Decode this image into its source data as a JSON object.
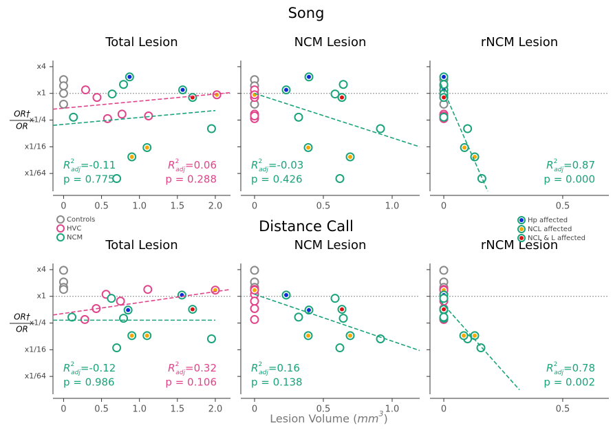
{
  "figure": {
    "rows": [
      "Song",
      "Distance Call"
    ],
    "ylabel": {
      "numerator": "OR†",
      "denominator": "OR"
    },
    "xlabel": {
      "text": "Lesion Volume (",
      "var": "mm",
      "sup": "3",
      "close": ")"
    },
    "r2_symbol": {
      "base": "R",
      "sup": "2",
      "sub": "adj"
    },
    "markers": [
      {
        "name": "Hp affected",
        "color": "#0a2ad6"
      },
      {
        "name": "NCL affected",
        "color": "#f5a800"
      },
      {
        "name": "NCL & L affected",
        "color": "#e01010"
      }
    ]
  },
  "chart_data": [
    {
      "type": "scatter",
      "title": "Total Lesion",
      "log_y": true,
      "hline": 1,
      "xlim": [
        -0.14,
        2.2
      ],
      "xticks": [
        0,
        0.5,
        {
          "value": 1,
          "label": "1.0"
        },
        1.5,
        {
          "value": 2,
          "label": "2.0"
        }
      ],
      "ylim": [
        0.0062,
        5.5
      ],
      "yticks": [
        {
          "value": 4,
          "label": "x4"
        },
        {
          "value": 1,
          "label": "x1"
        },
        {
          "value": 0.25,
          "label": "x1/4"
        },
        {
          "value": 0.0625,
          "label": "x1/16"
        },
        {
          "value": 0.015625,
          "label": "x1/64"
        }
      ],
      "series": [
        {
          "name": "Controls",
          "color": "#888888",
          "x": [
            0,
            0,
            0,
            0
          ],
          "values": [
            2.04,
            1.48,
            1,
            0.57
          ]
        },
        {
          "name": "HVC",
          "color": "#e0438a",
          "x": [
            0.29,
            0.44,
            0.58,
            0.77,
            1.12,
            2.02
          ],
          "values": [
            1.2,
            0.81,
            0.27,
            0.34,
            0.31,
            0.93
          ],
          "inner": [
            null,
            null,
            null,
            null,
            null,
            "#f5a800"
          ]
        },
        {
          "name": "NCM",
          "color": "#1aa37a",
          "x": [
            0.87,
            1.57,
            0.64,
            0.79,
            1.7,
            0.13,
            1.95,
            1.1,
            0.9,
            0.7
          ],
          "values": [
            2.35,
            1.2,
            0.97,
            1.59,
            0.81,
            0.29,
            0.16,
            0.06,
            0.037,
            0.012
          ],
          "inner": [
            "#0a2ad6",
            "#0a2ad6",
            null,
            null,
            "#e01010",
            null,
            null,
            "#f5a800",
            "#f5a800",
            null
          ]
        }
      ],
      "fits": [
        {
          "color": "#e0438a",
          "x": [
            -0.14,
            2.2
          ],
          "values": [
            0.44,
            1.04
          ]
        },
        {
          "color": "#1aa37a",
          "x": [
            -0.14,
            2.0
          ],
          "values": [
            0.19,
            0.41
          ]
        }
      ],
      "stats": [
        {
          "color": "#1aa37a",
          "corner": "left",
          "r2": "=-0.11",
          "p": "p = 0.775"
        },
        {
          "color": "#e0438a",
          "corner": "right",
          "r2": "=0.06",
          "p": "p = 0.288"
        }
      ]
    },
    {
      "type": "scatter",
      "title": "NCM Lesion",
      "log_y": true,
      "hline": 1,
      "xlim": [
        -0.1,
        1.2
      ],
      "xticks": [
        {
          "value": 0,
          "label": "0"
        },
        0.5,
        {
          "value": 1,
          "label": "1.0"
        }
      ],
      "ylim": [
        0.0062,
        5.5
      ],
      "yticks": [
        4,
        1,
        0.25,
        0.0625,
        0.015625
      ],
      "series": [
        {
          "color": "#888888",
          "x": [
            0,
            0,
            0,
            0
          ],
          "values": [
            2.04,
            1.48,
            1,
            0.57
          ]
        },
        {
          "color": "#e0438a",
          "x": [
            0,
            0,
            0,
            0,
            0,
            0
          ],
          "values": [
            1.2,
            0.81,
            0.27,
            0.34,
            0.31,
            0.93
          ],
          "inner": [
            null,
            null,
            null,
            null,
            null,
            "#f5a800"
          ]
        },
        {
          "color": "#1aa37a",
          "x": [
            0.395,
            0.23,
            0.585,
            0.645,
            0.635,
            0.32,
            0.915,
            0.39,
            0.695,
            0.62
          ],
          "values": [
            2.35,
            1.2,
            0.97,
            1.59,
            0.81,
            0.29,
            0.16,
            0.06,
            0.037,
            0.012
          ],
          "inner": [
            "#0a2ad6",
            "#0a2ad6",
            null,
            null,
            "#e01010",
            null,
            null,
            "#f5a800",
            "#f5a800",
            null
          ]
        }
      ],
      "fits": [
        {
          "color": "#1aa37a",
          "x": [
            0,
            1.2
          ],
          "values": [
            1,
            0.0625
          ]
        }
      ],
      "stats": [
        {
          "color": "#1aa37a",
          "corner": "left",
          "r2": "=-0.03",
          "p": "p = 0.426"
        }
      ]
    },
    {
      "type": "scatter",
      "title": "rNCM Lesion",
      "log_y": true,
      "hline": 1,
      "xlim": [
        -0.058,
        0.694
      ],
      "xticks": [
        0,
        0.5
      ],
      "ylim": [
        0.0062,
        5.5
      ],
      "yticks": [
        4,
        1,
        0.25,
        0.0625,
        0.015625
      ],
      "series": [
        {
          "color": "#888888",
          "x": [
            0,
            0,
            0,
            0
          ],
          "values": [
            2.04,
            1.48,
            1,
            0.57
          ]
        },
        {
          "color": "#e0438a",
          "x": [
            0,
            0,
            0,
            0,
            0,
            0
          ],
          "values": [
            1.2,
            0.81,
            0.27,
            0.34,
            0.31,
            0.93
          ],
          "inner": [
            null,
            null,
            null,
            null,
            null,
            "#f5a800"
          ]
        },
        {
          "color": "#1aa37a",
          "x": [
            0,
            0,
            0,
            0,
            0,
            0,
            0.1,
            0.087,
            0.13,
            0.16
          ],
          "values": [
            2.35,
            1.2,
            0.97,
            1.59,
            0.81,
            0.29,
            0.16,
            0.06,
            0.037,
            0.012
          ],
          "inner": [
            "#0a2ad6",
            "#0a2ad6",
            null,
            null,
            "#e01010",
            null,
            null,
            "#f5a800",
            "#f5a800",
            null
          ]
        }
      ],
      "fits": [
        {
          "color": "#1aa37a",
          "x": [
            -0.014,
            0.185
          ],
          "values": [
            1.7,
            0.0062
          ]
        }
      ],
      "stats": [
        {
          "color": "#1aa37a",
          "corner": "right",
          "r2": "=0.87",
          "p": "p = 0.000"
        }
      ]
    },
    {
      "type": "scatter",
      "title": "Total Lesion",
      "log_y": true,
      "hline": 1,
      "xlim": [
        -0.14,
        2.2
      ],
      "xticks": [
        0,
        0.5,
        {
          "value": 1,
          "label": "1.0"
        },
        1.5,
        {
          "value": 2,
          "label": "2.0"
        }
      ],
      "ylim": [
        0.0062,
        5.5
      ],
      "yticks": [
        {
          "value": 4,
          "label": "x4"
        },
        {
          "value": 1,
          "label": "x1"
        },
        {
          "value": 0.25,
          "label": "x1/4"
        },
        {
          "value": 0.0625,
          "label": "x1/16"
        },
        {
          "value": 0.015625,
          "label": "x1/64"
        }
      ],
      "series": [
        {
          "color": "#888888",
          "x": [
            0,
            0,
            0,
            0
          ],
          "values": [
            3.86,
            2.11,
            1.59,
            1.43
          ]
        },
        {
          "color": "#e0438a",
          "x": [
            0.28,
            0.43,
            0.56,
            0.75,
            1.11,
            2.0
          ],
          "values": [
            0.3,
            0.53,
            1.11,
            0.78,
            1.43,
            1.38
          ],
          "inner": [
            null,
            null,
            null,
            null,
            null,
            "#f5a800"
          ]
        },
        {
          "color": "#1aa37a",
          "x": [
            0.85,
            1.56,
            0.63,
            0.79,
            1.7,
            0.11,
            1.95,
            1.1,
            0.9,
            0.7
          ],
          "values": [
            0.49,
            1.07,
            0.9,
            0.32,
            0.51,
            0.34,
            0.11,
            0.13,
            0.13,
            0.069
          ],
          "inner": [
            "#0a2ad6",
            "#0a2ad6",
            null,
            null,
            "#e01010",
            null,
            null,
            "#f5a800",
            "#f5a800",
            null
          ]
        }
      ],
      "fits": [
        {
          "color": "#e0438a",
          "x": [
            -0.14,
            2.2
          ],
          "values": [
            0.38,
            1.43
          ]
        },
        {
          "color": "#1aa37a",
          "x": [
            -0.14,
            2.0
          ],
          "values": [
            0.29,
            0.29
          ]
        }
      ],
      "stats": [
        {
          "color": "#1aa37a",
          "corner": "left",
          "r2": "=-0.12",
          "p": "p = 0.986"
        },
        {
          "color": "#e0438a",
          "corner": "right",
          "r2": "=0.32",
          "p": "p = 0.106"
        }
      ]
    },
    {
      "type": "scatter",
      "title": "NCM Lesion",
      "log_y": true,
      "hline": 1,
      "xlim": [
        -0.1,
        1.2
      ],
      "xticks": [
        {
          "value": 0,
          "label": "0"
        },
        0.5,
        {
          "value": 1,
          "label": "1.0"
        }
      ],
      "ylim": [
        0.0062,
        5.5
      ],
      "yticks": [
        4,
        1,
        0.25,
        0.0625,
        0.015625
      ],
      "series": [
        {
          "color": "#888888",
          "x": [
            0,
            0,
            0,
            0
          ],
          "values": [
            3.86,
            2.11,
            1.59,
            1.43
          ]
        },
        {
          "color": "#e0438a",
          "x": [
            0,
            0,
            0,
            0,
            0,
            0
          ],
          "values": [
            0.3,
            0.53,
            1.11,
            0.78,
            1.43,
            1.38
          ],
          "inner": [
            null,
            null,
            null,
            null,
            null,
            "#f5a800"
          ]
        },
        {
          "color": "#1aa37a",
          "x": [
            0.395,
            0.23,
            0.585,
            0.645,
            0.635,
            0.32,
            0.915,
            0.39,
            0.695,
            0.62
          ],
          "values": [
            0.49,
            1.07,
            0.9,
            0.32,
            0.51,
            0.34,
            0.11,
            0.13,
            0.13,
            0.069
          ],
          "inner": [
            "#0a2ad6",
            "#0a2ad6",
            null,
            null,
            "#e01010",
            null,
            null,
            "#f5a800",
            "#f5a800",
            null
          ]
        }
      ],
      "fits": [
        {
          "color": "#1aa37a",
          "x": [
            0,
            1.2
          ],
          "values": [
            1.11,
            0.06
          ]
        }
      ],
      "stats": [
        {
          "color": "#1aa37a",
          "corner": "left",
          "r2": "=0.16",
          "p": "p = 0.138"
        }
      ]
    },
    {
      "type": "scatter",
      "title": "rNCM Lesion",
      "log_y": true,
      "hline": 1,
      "xlim": [
        -0.058,
        0.694
      ],
      "xticks": [
        0,
        0.5
      ],
      "ylim": [
        0.0062,
        5.5
      ],
      "yticks": [
        4,
        1,
        0.25,
        0.0625,
        0.015625
      ],
      "series": [
        {
          "color": "#888888",
          "x": [
            0,
            0,
            0,
            0
          ],
          "values": [
            3.86,
            2.11,
            1.59,
            1.43
          ]
        },
        {
          "color": "#e0438a",
          "x": [
            0,
            0,
            0,
            0,
            0,
            0
          ],
          "values": [
            0.3,
            0.53,
            1.11,
            0.78,
            1.43,
            1.38
          ],
          "inner": [
            null,
            null,
            null,
            null,
            null,
            "#f5a800"
          ]
        },
        {
          "color": "#1aa37a",
          "x": [
            0,
            0,
            0,
            0,
            0,
            0,
            0.1,
            0.084,
            0.13,
            0.156
          ],
          "values": [
            0.49,
            1.07,
            0.9,
            0.32,
            0.51,
            0.34,
            0.11,
            0.13,
            0.13,
            0.069
          ],
          "inner": [
            "#0a2ad6",
            "#0a2ad6",
            null,
            null,
            "#e01010",
            null,
            null,
            "#f5a800",
            "#f5a800",
            null
          ]
        }
      ],
      "fits": [
        {
          "color": "#1aa37a",
          "x": [
            -0.014,
            0.318
          ],
          "values": [
            0.78,
            0.0078
          ]
        }
      ],
      "stats": [
        {
          "color": "#1aa37a",
          "corner": "right",
          "r2": "=0.78",
          "p": "p = 0.002"
        }
      ]
    }
  ]
}
